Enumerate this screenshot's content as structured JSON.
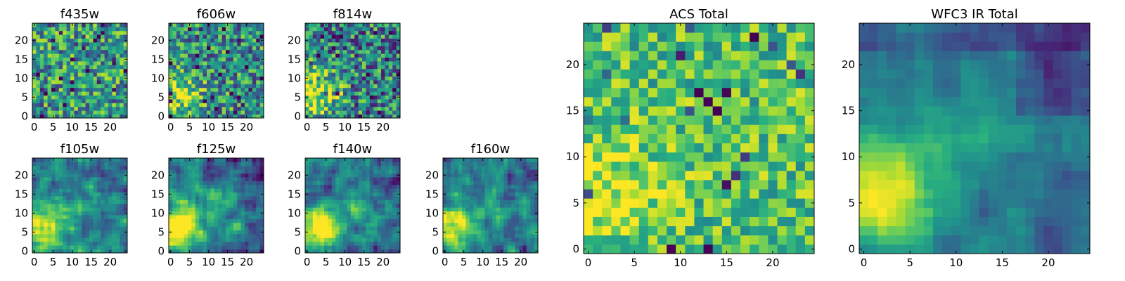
{
  "figure": {
    "colormap": "viridis"
  },
  "chart_data": [
    {
      "type": "heatmap",
      "title": "f435w",
      "grid": "25x25",
      "xticks": [
        0,
        5,
        10,
        15,
        20
      ],
      "yticks": [
        0,
        5,
        10,
        15,
        20
      ],
      "pattern": "noise",
      "seed": 11
    },
    {
      "type": "heatmap",
      "title": "f606w",
      "grid": "25x25",
      "xticks": [
        0,
        5,
        10,
        15,
        20
      ],
      "yticks": [
        0,
        5,
        10,
        15,
        20
      ],
      "pattern": "faint-blob-lower-left",
      "seed": 23
    },
    {
      "type": "heatmap",
      "title": "f814w",
      "grid": "25x25",
      "xticks": [
        0,
        5,
        10,
        15,
        20
      ],
      "yticks": [
        0,
        5,
        10,
        15,
        20
      ],
      "pattern": "blob-lower-left",
      "seed": 37
    },
    {
      "type": "heatmap",
      "title": "f105w",
      "grid": "25x25",
      "xticks": [
        0,
        5,
        10,
        15,
        20
      ],
      "yticks": [
        0,
        5,
        10,
        15,
        20
      ],
      "pattern": "blob-lower-left-smooth",
      "seed": 41
    },
    {
      "type": "heatmap",
      "title": "f125w",
      "grid": "25x25",
      "xticks": [
        0,
        5,
        10,
        15,
        20
      ],
      "yticks": [
        0,
        5,
        10,
        15,
        20
      ],
      "pattern": "blob-lower-left-smooth",
      "seed": 53
    },
    {
      "type": "heatmap",
      "title": "f140w",
      "grid": "25x25",
      "xticks": [
        0,
        5,
        10,
        15,
        20
      ],
      "yticks": [
        0,
        5,
        10,
        15,
        20
      ],
      "pattern": "blob-lower-left-smooth",
      "seed": 67
    },
    {
      "type": "heatmap",
      "title": "f160w",
      "grid": "25x25",
      "xticks": [
        0,
        5,
        10,
        15,
        20
      ],
      "yticks": [
        0,
        5,
        10,
        15,
        20
      ],
      "pattern": "blob-lower-left-smooth",
      "seed": 79
    },
    {
      "type": "heatmap",
      "title": "ACS Total",
      "grid": "25x25",
      "xticks": [
        0,
        5,
        10,
        15,
        20
      ],
      "yticks": [
        0,
        5,
        10,
        15,
        20
      ],
      "pattern": "bright-noise",
      "seed": 97
    },
    {
      "type": "heatmap",
      "title": "WFC3 IR Total",
      "grid": "25x25",
      "xticks": [
        0,
        5,
        10,
        15,
        20
      ],
      "yticks": [
        0,
        5,
        10,
        15,
        20
      ],
      "pattern": "smooth-blob-lower-left",
      "seed": 131
    }
  ]
}
